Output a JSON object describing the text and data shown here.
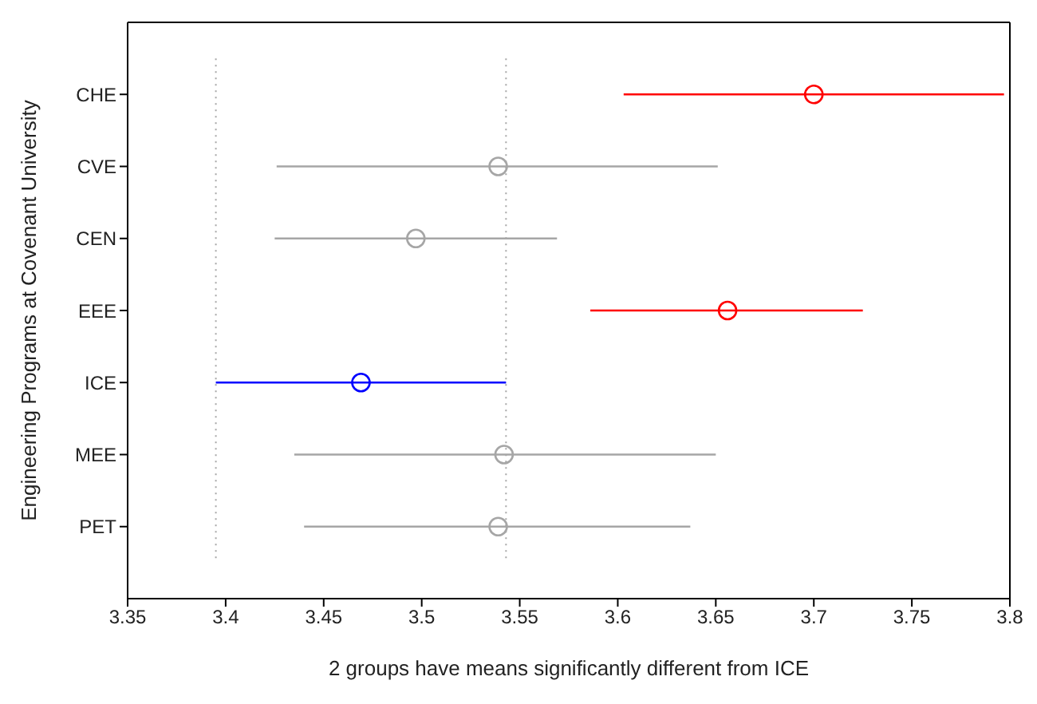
{
  "chart_data": {
    "type": "scatter",
    "orientation": "horizontal",
    "xlabel": "2 groups have means significantly different from ICE",
    "ylabel": "Engineering Programs at Covenant University",
    "categories": [
      "CHE",
      "CVE",
      "CEN",
      "EEE",
      "ICE",
      "MEE",
      "PET"
    ],
    "values": [
      3.7,
      3.539,
      3.497,
      3.656,
      3.469,
      3.542,
      3.539
    ],
    "errors": [
      [
        3.603,
        3.797
      ],
      [
        3.426,
        3.651
      ],
      [
        3.425,
        3.569
      ],
      [
        3.586,
        3.725
      ],
      [
        3.395,
        3.543
      ],
      [
        3.435,
        3.65
      ],
      [
        3.44,
        3.637
      ]
    ],
    "colors": [
      "#ff0000",
      "#a6a6a6",
      "#a6a6a6",
      "#ff0000",
      "#0000ff",
      "#a6a6a6",
      "#a6a6a6"
    ],
    "marker": "circle",
    "grid": false,
    "legend": false,
    "xlim": [
      3.35,
      3.8
    ],
    "xticks": [
      3.35,
      3.4,
      3.45,
      3.5,
      3.55,
      3.6,
      3.65,
      3.7,
      3.75,
      3.8
    ],
    "ref_lines": [
      {
        "axis": "x",
        "value": 3.395,
        "color": "#a6a6a6",
        "line_style": "dotted"
      },
      {
        "axis": "x",
        "value": 3.543,
        "color": "#a6a6a6",
        "line_style": "dotted"
      }
    ]
  }
}
